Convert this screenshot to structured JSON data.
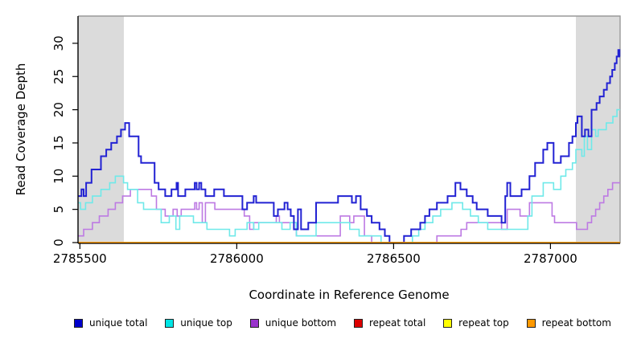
{
  "figure": {
    "kind": "R step-line coverage plot",
    "background": "#ffffff",
    "plot_border_color": "#999999",
    "axis_color": "#000000",
    "shaded_band_color": "#dbdbdb"
  },
  "legend": {
    "items": [
      {
        "label": "unique total",
        "color": "#0000cc"
      },
      {
        "label": "unique top",
        "color": "#00e5e5"
      },
      {
        "label": "unique bottom",
        "color": "#9933cc"
      },
      {
        "label": "repeat total",
        "color": "#dd0000"
      },
      {
        "label": "repeat top",
        "color": "#ffff00"
      },
      {
        "label": "repeat bottom",
        "color": "#ff9900"
      }
    ]
  },
  "chart_data": {
    "type": "line",
    "subtype": "step",
    "title": "",
    "xlabel": "Coordinate in Reference Genome",
    "ylabel": "Read Coverage Depth",
    "xlim": [
      2785494,
      2787222
    ],
    "ylim": [
      0,
      34
    ],
    "x_ticks": [
      2785500,
      2786000,
      2786500,
      2787000
    ],
    "y_ticks": [
      0,
      5,
      10,
      15,
      20,
      25,
      30
    ],
    "grid": false,
    "legend_position": "bottom",
    "shaded_regions": [
      {
        "name": "left-gray-band",
        "from": 2785494,
        "to": 2785640
      },
      {
        "name": "right-gray-band",
        "from": 2787081,
        "to": 2787222
      }
    ],
    "series": [
      {
        "name": "unique bottom",
        "line_color": "#bd7ae3",
        "points": [
          [
            2785494,
            1
          ],
          [
            2785512,
            2
          ],
          [
            2785540,
            3
          ],
          [
            2785562,
            4
          ],
          [
            2785590,
            5
          ],
          [
            2785613,
            6
          ],
          [
            2785636,
            7
          ],
          [
            2785661,
            8
          ],
          [
            2785728,
            7
          ],
          [
            2785744,
            5
          ],
          [
            2785772,
            4
          ],
          [
            2785797,
            5
          ],
          [
            2785810,
            4
          ],
          [
            2785823,
            5
          ],
          [
            2785866,
            6
          ],
          [
            2785872,
            5
          ],
          [
            2785880,
            6
          ],
          [
            2785890,
            3
          ],
          [
            2785900,
            6
          ],
          [
            2785930,
            5
          ],
          [
            2786024,
            4
          ],
          [
            2786041,
            2
          ],
          [
            2786054,
            3
          ],
          [
            2786126,
            4
          ],
          [
            2786136,
            3
          ],
          [
            2786190,
            1
          ],
          [
            2786330,
            4
          ],
          [
            2786360,
            3
          ],
          [
            2786373,
            4
          ],
          [
            2786407,
            1
          ],
          [
            2786430,
            0
          ],
          [
            2786638,
            1
          ],
          [
            2786715,
            2
          ],
          [
            2786733,
            3
          ],
          [
            2786844,
            2
          ],
          [
            2786862,
            5
          ],
          [
            2786903,
            4
          ],
          [
            2786933,
            6
          ],
          [
            2787005,
            4
          ],
          [
            2787013,
            3
          ],
          [
            2787083,
            2
          ],
          [
            2787118,
            3
          ],
          [
            2787131,
            4
          ],
          [
            2787144,
            5
          ],
          [
            2787157,
            6
          ],
          [
            2787170,
            7
          ],
          [
            2787183,
            8
          ],
          [
            2787198,
            9
          ]
        ]
      },
      {
        "name": "unique top",
        "line_color": "#6fe9e9",
        "points": [
          [
            2785494,
            6
          ],
          [
            2785502,
            5
          ],
          [
            2785518,
            6
          ],
          [
            2785540,
            7
          ],
          [
            2785567,
            8
          ],
          [
            2785595,
            9
          ],
          [
            2785613,
            10
          ],
          [
            2785639,
            9
          ],
          [
            2785652,
            8
          ],
          [
            2785684,
            6
          ],
          [
            2785703,
            5
          ],
          [
            2785759,
            3
          ],
          [
            2785785,
            4
          ],
          [
            2785806,
            2
          ],
          [
            2785818,
            4
          ],
          [
            2785862,
            3
          ],
          [
            2785905,
            2
          ],
          [
            2785977,
            1
          ],
          [
            2785995,
            2
          ],
          [
            2786033,
            3
          ],
          [
            2786054,
            2
          ],
          [
            2786070,
            3
          ],
          [
            2786144,
            2
          ],
          [
            2786170,
            3
          ],
          [
            2786190,
            1
          ],
          [
            2786253,
            3
          ],
          [
            2786360,
            2
          ],
          [
            2786390,
            1
          ],
          [
            2786460,
            0
          ],
          [
            2786560,
            1
          ],
          [
            2786580,
            2
          ],
          [
            2786600,
            3
          ],
          [
            2786625,
            4
          ],
          [
            2786650,
            5
          ],
          [
            2786686,
            6
          ],
          [
            2786720,
            5
          ],
          [
            2786745,
            4
          ],
          [
            2786770,
            3
          ],
          [
            2786800,
            2
          ],
          [
            2786928,
            4
          ],
          [
            2786941,
            7
          ],
          [
            2786977,
            9
          ],
          [
            2787010,
            8
          ],
          [
            2787033,
            10
          ],
          [
            2787049,
            11
          ],
          [
            2787070,
            12
          ],
          [
            2787081,
            14
          ],
          [
            2787100,
            13
          ],
          [
            2787108,
            16
          ],
          [
            2787118,
            14
          ],
          [
            2787131,
            17
          ],
          [
            2787144,
            16
          ],
          [
            2787152,
            17
          ],
          [
            2787178,
            18
          ],
          [
            2787199,
            19
          ],
          [
            2787212,
            20
          ]
        ]
      },
      {
        "name": "unique total",
        "line_color": "#2222d3",
        "points": [
          [
            2785494,
            7
          ],
          [
            2785505,
            8
          ],
          [
            2785512,
            7
          ],
          [
            2785520,
            9
          ],
          [
            2785537,
            11
          ],
          [
            2785567,
            13
          ],
          [
            2785584,
            14
          ],
          [
            2785600,
            15
          ],
          [
            2785618,
            16
          ],
          [
            2785631,
            17
          ],
          [
            2785644,
            18
          ],
          [
            2785657,
            16
          ],
          [
            2785687,
            13
          ],
          [
            2785695,
            12
          ],
          [
            2785738,
            9
          ],
          [
            2785751,
            8
          ],
          [
            2785772,
            7
          ],
          [
            2785792,
            8
          ],
          [
            2785808,
            9
          ],
          [
            2785813,
            7
          ],
          [
            2785836,
            8
          ],
          [
            2785866,
            9
          ],
          [
            2785872,
            8
          ],
          [
            2785880,
            9
          ],
          [
            2785887,
            8
          ],
          [
            2785900,
            7
          ],
          [
            2785928,
            8
          ],
          [
            2785959,
            7
          ],
          [
            2786018,
            5
          ],
          [
            2786033,
            6
          ],
          [
            2786054,
            7
          ],
          [
            2786062,
            6
          ],
          [
            2786118,
            4
          ],
          [
            2786131,
            5
          ],
          [
            2786152,
            6
          ],
          [
            2786162,
            5
          ],
          [
            2786172,
            4
          ],
          [
            2786182,
            2
          ],
          [
            2786195,
            5
          ],
          [
            2786205,
            2
          ],
          [
            2786228,
            3
          ],
          [
            2786253,
            6
          ],
          [
            2786323,
            7
          ],
          [
            2786367,
            6
          ],
          [
            2786380,
            7
          ],
          [
            2786395,
            5
          ],
          [
            2786415,
            4
          ],
          [
            2786430,
            3
          ],
          [
            2786455,
            2
          ],
          [
            2786472,
            1
          ],
          [
            2786487,
            0
          ],
          [
            2786533,
            1
          ],
          [
            2786556,
            2
          ],
          [
            2786585,
            3
          ],
          [
            2786600,
            4
          ],
          [
            2786614,
            5
          ],
          [
            2786638,
            6
          ],
          [
            2786672,
            7
          ],
          [
            2786697,
            9
          ],
          [
            2786713,
            8
          ],
          [
            2786733,
            7
          ],
          [
            2786752,
            6
          ],
          [
            2786765,
            5
          ],
          [
            2786800,
            4
          ],
          [
            2786844,
            3
          ],
          [
            2786856,
            7
          ],
          [
            2786862,
            9
          ],
          [
            2786872,
            7
          ],
          [
            2786908,
            8
          ],
          [
            2786933,
            10
          ],
          [
            2786951,
            12
          ],
          [
            2786977,
            14
          ],
          [
            2786990,
            15
          ],
          [
            2787010,
            12
          ],
          [
            2787033,
            13
          ],
          [
            2787059,
            15
          ],
          [
            2787070,
            16
          ],
          [
            2787081,
            18
          ],
          [
            2787086,
            19
          ],
          [
            2787100,
            16
          ],
          [
            2787110,
            17
          ],
          [
            2787121,
            16
          ],
          [
            2787131,
            20
          ],
          [
            2787147,
            21
          ],
          [
            2787157,
            22
          ],
          [
            2787170,
            23
          ],
          [
            2787180,
            24
          ],
          [
            2787190,
            25
          ],
          [
            2787197,
            26
          ],
          [
            2787205,
            27
          ],
          [
            2787211,
            28
          ],
          [
            2787216,
            29
          ],
          [
            2787220,
            28
          ]
        ]
      },
      {
        "name": "repeat total",
        "line_color": "#dd0000",
        "points": [
          [
            2785494,
            0
          ]
        ]
      },
      {
        "name": "repeat top",
        "line_color": "#ffff00",
        "points": [
          [
            2785494,
            0
          ]
        ]
      },
      {
        "name": "repeat bottom",
        "line_color": "#ff9800",
        "points": [
          [
            2785494,
            0
          ]
        ]
      }
    ]
  }
}
